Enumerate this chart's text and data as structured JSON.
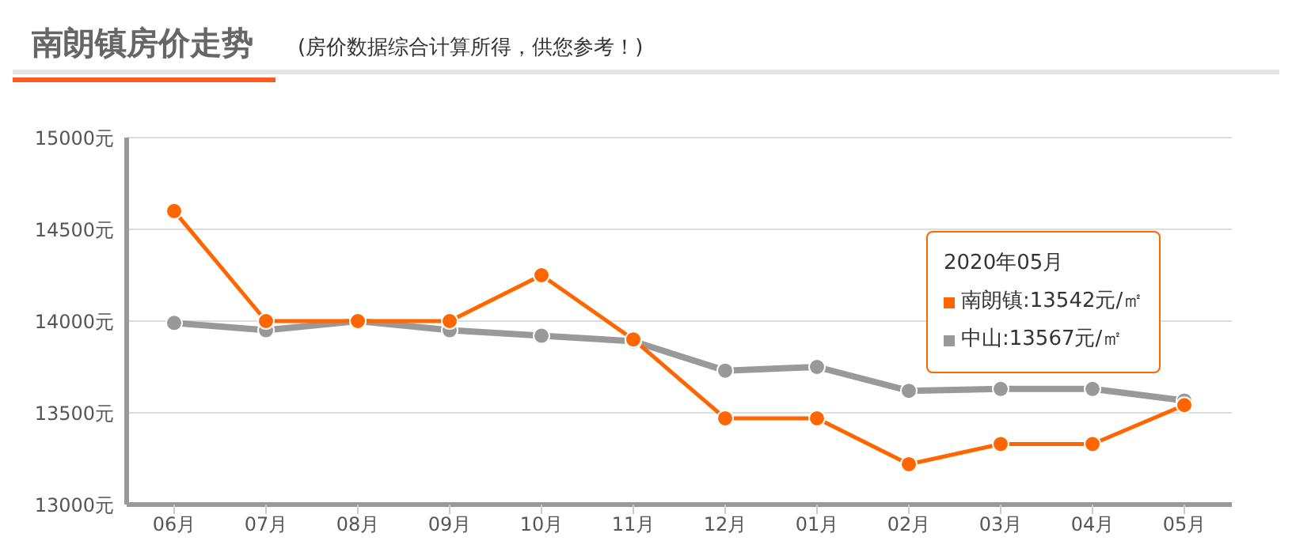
{
  "chart_data": {
    "type": "line",
    "title": "南朗镇房价走势",
    "subtitle": "(房价数据综合计算所得，供您参考！)",
    "categories": [
      "06月",
      "07月",
      "08月",
      "09月",
      "10月",
      "11月",
      "12月",
      "01月",
      "02月",
      "03月",
      "04月",
      "05月"
    ],
    "series": [
      {
        "color": "#ff6600",
        "values": [
          14600,
          14000,
          14000,
          14000,
          14250,
          13900,
          13470,
          13470,
          13220,
          13330,
          13330,
          13542
        ]
      },
      {
        "color": "#999999",
        "values": [
          13990,
          13950,
          14000,
          13950,
          13920,
          13890,
          13730,
          13750,
          13620,
          13630,
          13630,
          13567
        ]
      }
    ],
    "ylim": [
      13000,
      15000
    ],
    "yticks": [
      {
        "value": 13000,
        "label": "13000元"
      },
      {
        "value": 13500,
        "label": "13500元"
      },
      {
        "value": 14000,
        "label": "14000元"
      },
      {
        "value": 14500,
        "label": "14500元"
      },
      {
        "value": 15000,
        "label": "15000元"
      }
    ],
    "grid": "y",
    "legend": false,
    "marker": "circle",
    "line_style": "solid",
    "annotations": [
      "2020年05月",
      "南朗镇:13542元/㎡",
      "中山:13567元/㎡"
    ]
  }
}
